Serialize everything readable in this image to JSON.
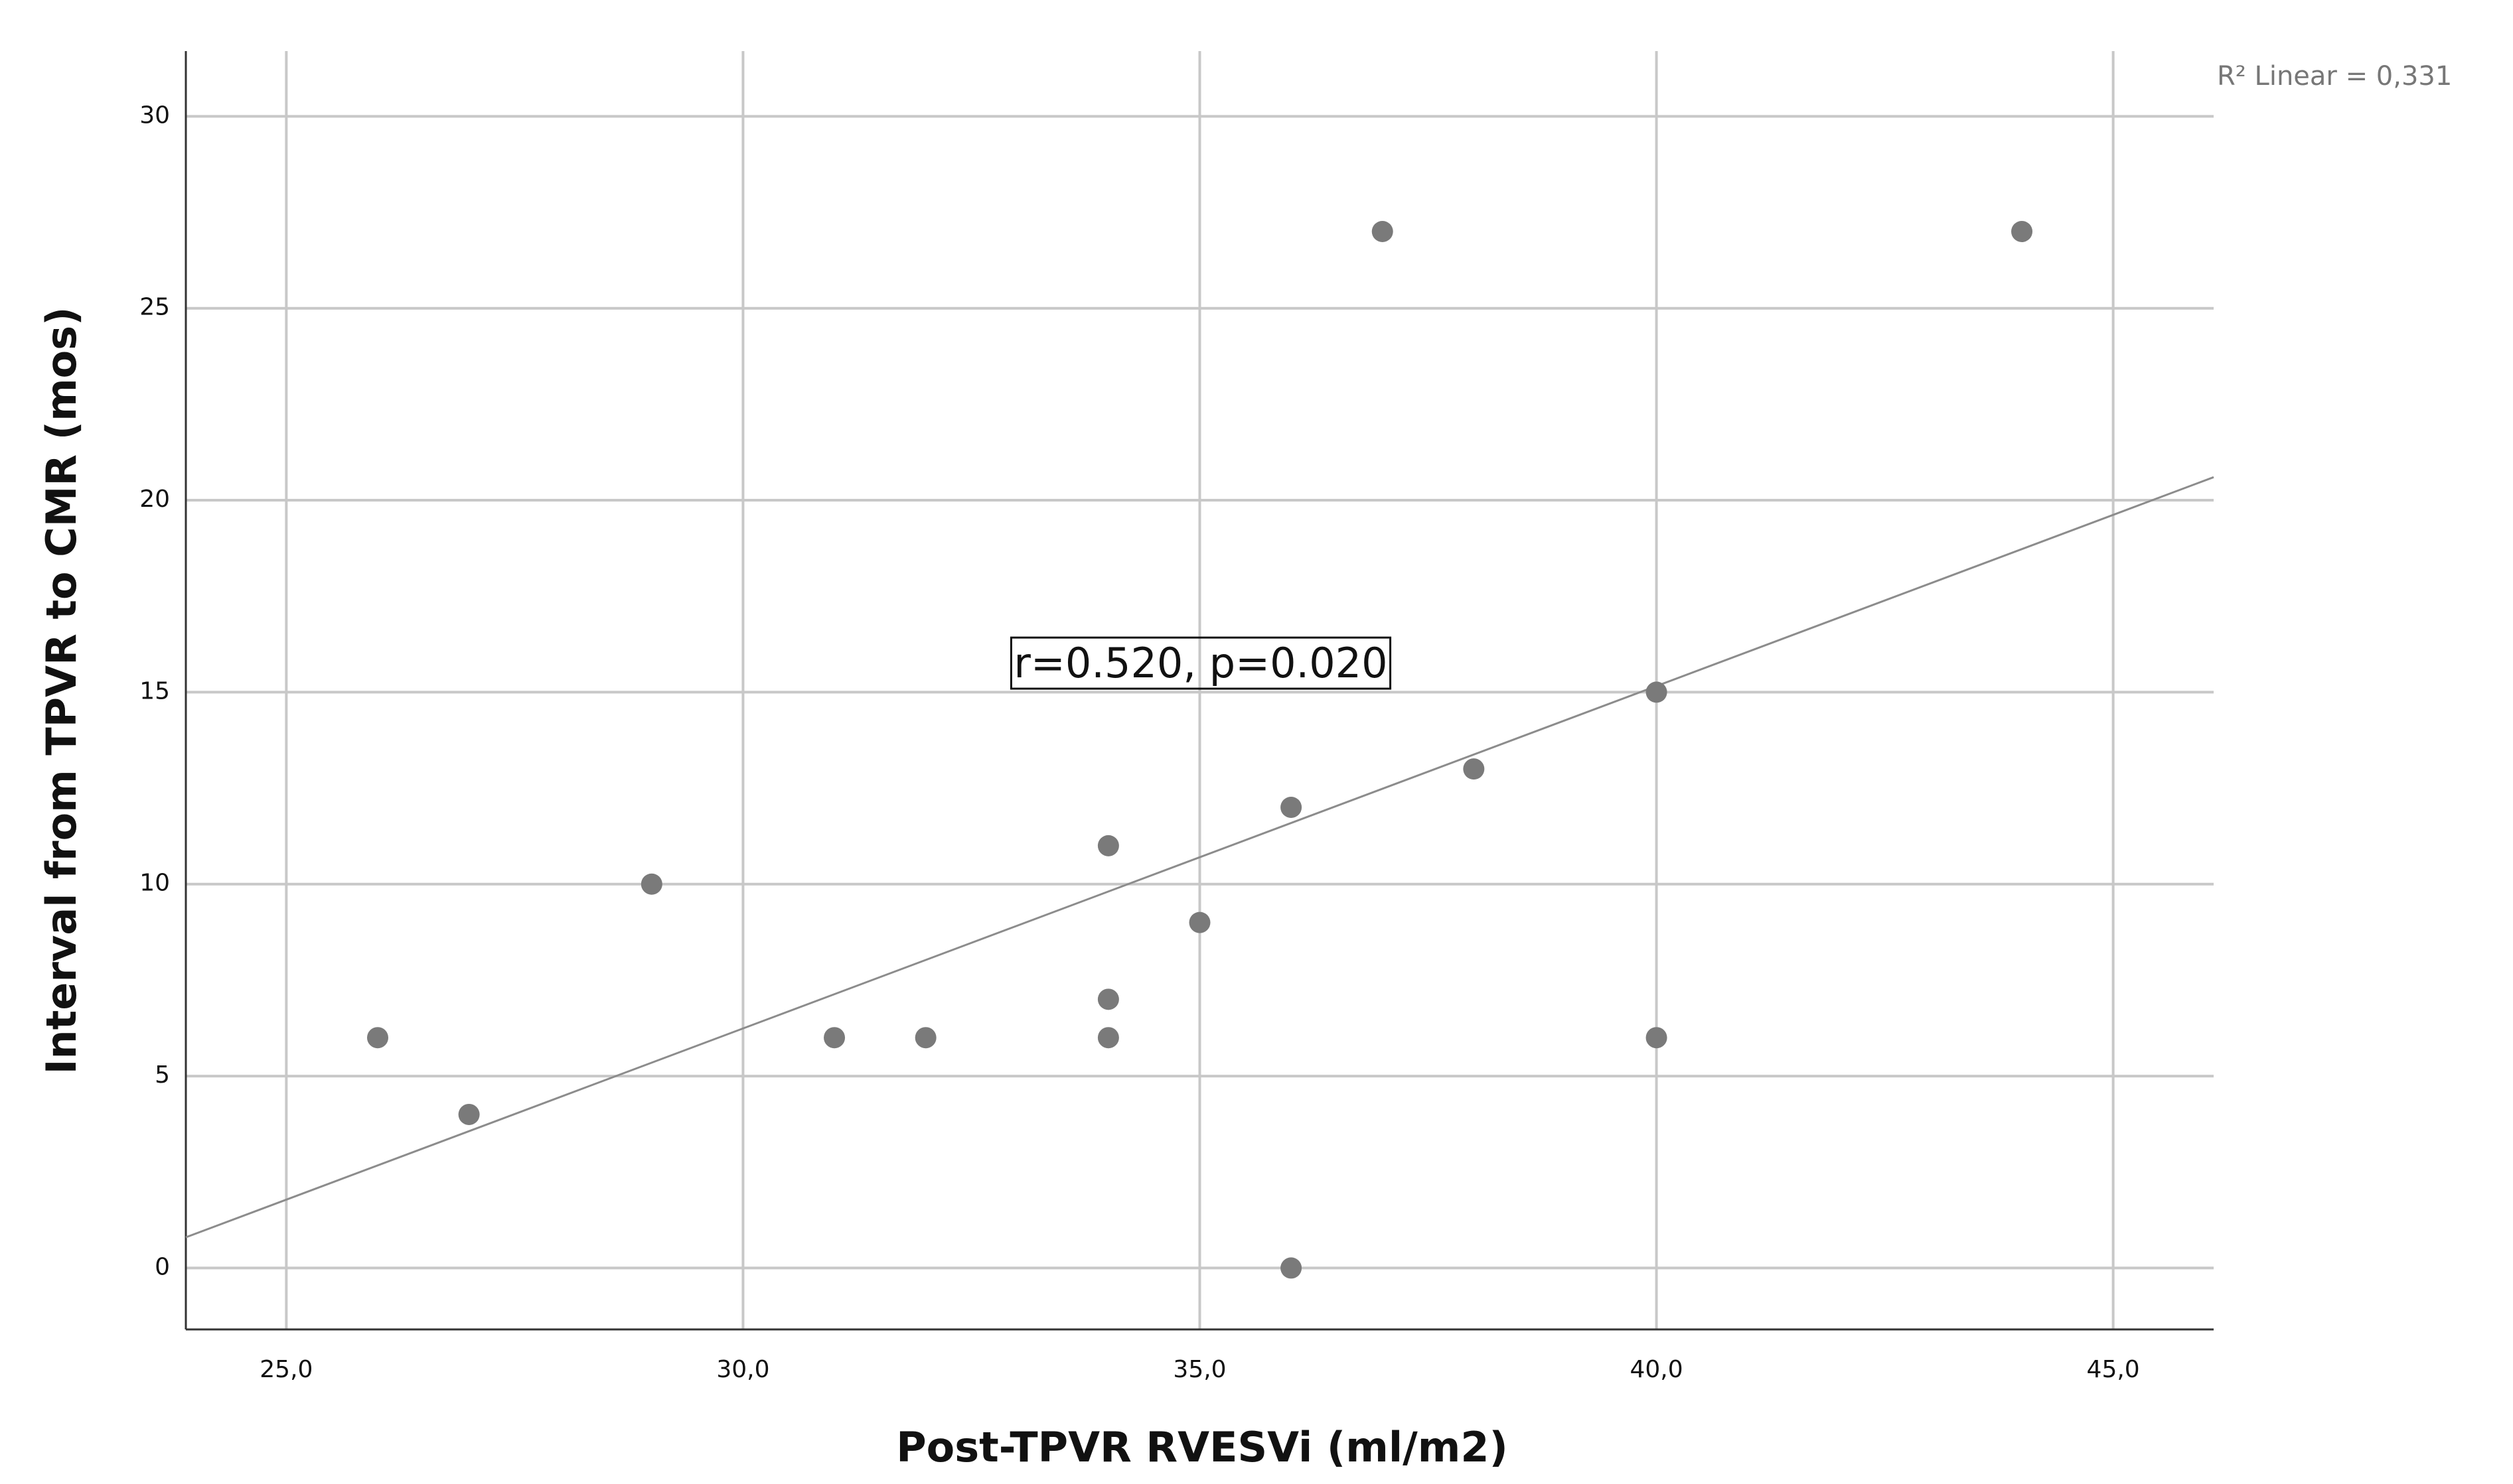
{
  "chart_data": {
    "type": "scatter",
    "x_label": "Post-TPVR RVESVi (ml/m2)",
    "y_label": "Interval from TPVR to CMR (mos)",
    "annotations": [
      "r=0.520,  p=0.020",
      "R² Linear = 0,331"
    ],
    "series": [
      {
        "color": "#7a7a7a",
        "x": [
          26,
          27,
          29,
          31,
          32,
          34,
          34,
          34,
          35,
          36,
          36,
          37,
          38,
          40,
          40,
          44
        ],
        "values": [
          6,
          4,
          10,
          6,
          6,
          11,
          7,
          6,
          9,
          12,
          0,
          27,
          13,
          15,
          6,
          27
        ]
      }
    ],
    "trendline": {
      "color": "#8c8c8c",
      "x": [
        23.9,
        46.1
      ],
      "values": [
        0.8,
        20.6
      ]
    },
    "xlim": [
      23.9,
      46.1
    ],
    "ylim": [
      -1.6,
      31.7
    ],
    "xticks": [
      {
        "value": 25,
        "label": "25,0"
      },
      {
        "value": 30,
        "label": "30,0"
      },
      {
        "value": 35,
        "label": "35,0"
      },
      {
        "value": 40,
        "label": "40,0"
      },
      {
        "value": 45,
        "label": "45,0"
      }
    ],
    "yticks": [
      0,
      5,
      10,
      15,
      20,
      25,
      30
    ],
    "grid": true
  }
}
